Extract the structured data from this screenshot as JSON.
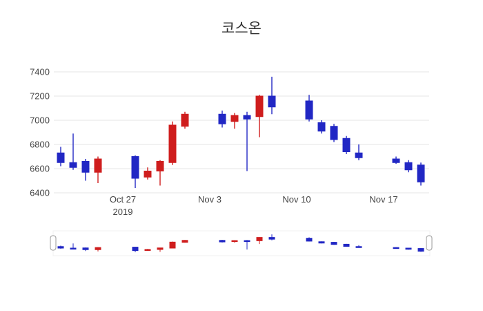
{
  "chart_data": {
    "type": "candlestick",
    "title": "코스온",
    "ylim": [
      6400,
      7400
    ],
    "yticks": [
      6400,
      6600,
      6800,
      7000,
      7200,
      7400
    ],
    "xticks": [
      {
        "date": "2019-10-27",
        "label": "Oct 27",
        "sublabel": "2019"
      },
      {
        "date": "2019-11-03",
        "label": "Nov 3",
        "sublabel": ""
      },
      {
        "date": "2019-11-10",
        "label": "Nov 10",
        "sublabel": ""
      },
      {
        "date": "2019-11-17",
        "label": "Nov 17",
        "sublabel": ""
      }
    ],
    "colors": {
      "increasing": "#cf1d1d",
      "decreasing": "#2127c4",
      "grid": "#e6e6e6"
    },
    "grid": true,
    "legend": false,
    "rangeslider": true,
    "candles": [
      {
        "date": "2019-10-22",
        "open": 6730,
        "high": 6780,
        "low": 6620,
        "close": 6650
      },
      {
        "date": "2019-10-23",
        "open": 6650,
        "high": 6890,
        "low": 6590,
        "close": 6610
      },
      {
        "date": "2019-10-24",
        "open": 6660,
        "high": 6680,
        "low": 6500,
        "close": 6570
      },
      {
        "date": "2019-10-25",
        "open": 6570,
        "high": 6700,
        "low": 6480,
        "close": 6680
      },
      {
        "date": "2019-10-28",
        "open": 6700,
        "high": 6710,
        "low": 6440,
        "close": 6520
      },
      {
        "date": "2019-10-29",
        "open": 6530,
        "high": 6610,
        "low": 6510,
        "close": 6580
      },
      {
        "date": "2019-10-30",
        "open": 6580,
        "high": 6670,
        "low": 6460,
        "close": 6660
      },
      {
        "date": "2019-10-31",
        "open": 6650,
        "high": 6990,
        "low": 6630,
        "close": 6960
      },
      {
        "date": "2019-11-01",
        "open": 6950,
        "high": 7070,
        "low": 6930,
        "close": 7050
      },
      {
        "date": "2019-11-04",
        "open": 7050,
        "high": 7080,
        "low": 6940,
        "close": 6970
      },
      {
        "date": "2019-11-05",
        "open": 6990,
        "high": 7060,
        "low": 6930,
        "close": 7040
      },
      {
        "date": "2019-11-06",
        "open": 7040,
        "high": 7070,
        "low": 6580,
        "close": 7010
      },
      {
        "date": "2019-11-07",
        "open": 7030,
        "high": 7210,
        "low": 6860,
        "close": 7200
      },
      {
        "date": "2019-11-08",
        "open": 7200,
        "high": 7360,
        "low": 7050,
        "close": 7110
      },
      {
        "date": "2019-11-11",
        "open": 7160,
        "high": 7210,
        "low": 6990,
        "close": 7010
      },
      {
        "date": "2019-11-12",
        "open": 6980,
        "high": 7000,
        "low": 6890,
        "close": 6910
      },
      {
        "date": "2019-11-13",
        "open": 6950,
        "high": 6970,
        "low": 6820,
        "close": 6840
      },
      {
        "date": "2019-11-14",
        "open": 6850,
        "high": 6870,
        "low": 6720,
        "close": 6740
      },
      {
        "date": "2019-11-15",
        "open": 6730,
        "high": 6800,
        "low": 6670,
        "close": 6690
      },
      {
        "date": "2019-11-18",
        "open": 6680,
        "high": 6700,
        "low": 6640,
        "close": 6650
      },
      {
        "date": "2019-11-19",
        "open": 6650,
        "high": 6670,
        "low": 6570,
        "close": 6590
      },
      {
        "date": "2019-11-20",
        "open": 6630,
        "high": 6650,
        "low": 6460,
        "close": 6490
      }
    ]
  }
}
